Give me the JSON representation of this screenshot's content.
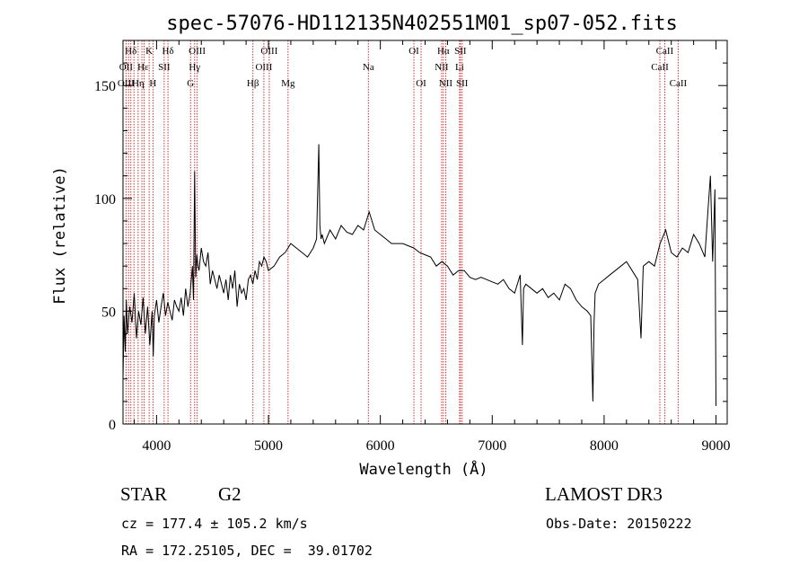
{
  "chart_data": {
    "type": "line",
    "title": "spec-57076-HD112135N402551M01_sp07-052.fits",
    "xlabel": "Wavelength (Å)",
    "ylabel": "Flux (relative)",
    "xlim": [
      3700,
      9100
    ],
    "ylim": [
      0,
      170
    ],
    "xticks": [
      4000,
      5000,
      6000,
      7000,
      8000,
      9000
    ],
    "yticks": [
      0,
      50,
      100,
      150
    ],
    "series": [
      {
        "name": "flux",
        "x": [
          3700,
          3710,
          3720,
          3730,
          3740,
          3760,
          3780,
          3800,
          3820,
          3840,
          3860,
          3880,
          3900,
          3920,
          3940,
          3960,
          3970,
          3980,
          4000,
          4020,
          4040,
          4060,
          4080,
          4100,
          4120,
          4140,
          4160,
          4180,
          4200,
          4220,
          4240,
          4260,
          4280,
          4300,
          4320,
          4330,
          4340,
          4350,
          4360,
          4370,
          4380,
          4400,
          4420,
          4440,
          4460,
          4480,
          4500,
          4520,
          4540,
          4560,
          4580,
          4600,
          4620,
          4640,
          4660,
          4680,
          4700,
          4720,
          4740,
          4760,
          4780,
          4800,
          4820,
          4840,
          4860,
          4880,
          4900,
          4920,
          4940,
          4960,
          4980,
          5000,
          5050,
          5100,
          5150,
          5200,
          5250,
          5300,
          5350,
          5400,
          5430,
          5450,
          5460,
          5470,
          5480,
          5500,
          5550,
          5600,
          5650,
          5700,
          5750,
          5800,
          5850,
          5900,
          5950,
          6000,
          6050,
          6100,
          6150,
          6200,
          6250,
          6300,
          6350,
          6400,
          6450,
          6500,
          6550,
          6600,
          6650,
          6700,
          6750,
          6800,
          6850,
          6900,
          6950,
          7000,
          7050,
          7100,
          7150,
          7200,
          7250,
          7270,
          7280,
          7300,
          7350,
          7400,
          7450,
          7500,
          7550,
          7600,
          7650,
          7700,
          7750,
          7800,
          7850,
          7880,
          7900,
          7910,
          7920,
          7950,
          8000,
          8050,
          8100,
          8150,
          8200,
          8250,
          8300,
          8330,
          8340,
          8350,
          8400,
          8450,
          8500,
          8550,
          8600,
          8650,
          8700,
          8750,
          8800,
          8850,
          8900,
          8930,
          8950,
          8970,
          8990,
          9000
        ],
        "y": [
          20,
          48,
          32,
          55,
          40,
          52,
          45,
          58,
          38,
          50,
          44,
          56,
          40,
          52,
          35,
          50,
          30,
          48,
          55,
          45,
          52,
          58,
          48,
          54,
          50,
          46,
          55,
          52,
          50,
          56,
          48,
          60,
          52,
          58,
          70,
          55,
          112,
          65,
          75,
          70,
          68,
          78,
          72,
          70,
          76,
          62,
          68,
          64,
          60,
          66,
          62,
          58,
          64,
          55,
          66,
          60,
          68,
          52,
          62,
          58,
          60,
          55,
          64,
          66,
          62,
          68,
          64,
          72,
          70,
          74,
          72,
          68,
          70,
          74,
          76,
          80,
          78,
          76,
          74,
          78,
          82,
          124,
          88,
          82,
          84,
          80,
          86,
          82,
          88,
          85,
          84,
          88,
          86,
          94,
          86,
          84,
          82,
          80,
          80,
          80,
          79,
          78,
          76,
          75,
          74,
          70,
          72,
          70,
          66,
          68,
          68,
          65,
          64,
          65,
          64,
          63,
          62,
          64,
          60,
          58,
          66,
          35,
          60,
          62,
          60,
          58,
          60,
          56,
          58,
          55,
          62,
          60,
          55,
          52,
          50,
          48,
          10,
          45,
          58,
          62,
          64,
          66,
          68,
          70,
          72,
          68,
          64,
          38,
          55,
          70,
          72,
          70,
          80,
          86,
          76,
          74,
          78,
          76,
          84,
          80,
          74,
          96,
          110,
          72,
          104,
          8
        ]
      }
    ],
    "line_markers": {
      "top_labels": [
        {
          "text": "Hδ",
          "x": 3770
        },
        {
          "text": "K",
          "x": 3934
        },
        {
          "text": "Hδ",
          "x": 4102
        },
        {
          "text": "OIII",
          "x": 4363
        },
        {
          "text": "OIII",
          "x": 5007
        },
        {
          "text": "OI",
          "x": 6300
        },
        {
          "text": "Hα",
          "x": 6563
        },
        {
          "text": "SII",
          "x": 6716
        },
        {
          "text": "CaII",
          "x": 8542
        }
      ],
      "mid_labels": [
        {
          "text": "OII",
          "x": 3727
        },
        {
          "text": "Hε",
          "x": 3880
        },
        {
          "text": "SII",
          "x": 4068
        },
        {
          "text": "Hγ",
          "x": 4340
        },
        {
          "text": "OIII",
          "x": 4959
        },
        {
          "text": "Na",
          "x": 5893
        },
        {
          "text": "NII",
          "x": 6548
        },
        {
          "text": "Li",
          "x": 6708
        },
        {
          "text": "CaII",
          "x": 8498
        }
      ],
      "bottom_labels": [
        {
          "text": "OIII",
          "x": 3727
        },
        {
          "text": "Hη",
          "x": 3835
        },
        {
          "text": "H",
          "x": 3968
        },
        {
          "text": "G",
          "x": 4304
        },
        {
          "text": "Hβ",
          "x": 4861
        },
        {
          "text": "Mg",
          "x": 5175
        },
        {
          "text": "OI",
          "x": 6364
        },
        {
          "text": "NII",
          "x": 6584
        },
        {
          "text": "SII",
          "x": 6731
        },
        {
          "text": "CaII",
          "x": 8662
        }
      ],
      "dotted_lines_x": [
        3727,
        3750,
        3770,
        3798,
        3835,
        3869,
        3889,
        3934,
        3968,
        4068,
        4102,
        4304,
        4340,
        4363,
        4861,
        4959,
        5007,
        5175,
        5893,
        6300,
        6364,
        6548,
        6563,
        6584,
        6708,
        6716,
        6731,
        8498,
        8542,
        8662
      ]
    }
  },
  "info": {
    "class": "STAR",
    "subclass": "G2",
    "survey": "LAMOST DR3",
    "cz": "cz = 177.4 ± 105.2 km/s",
    "obs_date": "Obs-Date: 20150222",
    "radec": "RA = 172.25105, DEC =  39.01702"
  },
  "colors": {
    "line": "#000000",
    "marker": "#cc3333",
    "background": "#ffffff"
  }
}
